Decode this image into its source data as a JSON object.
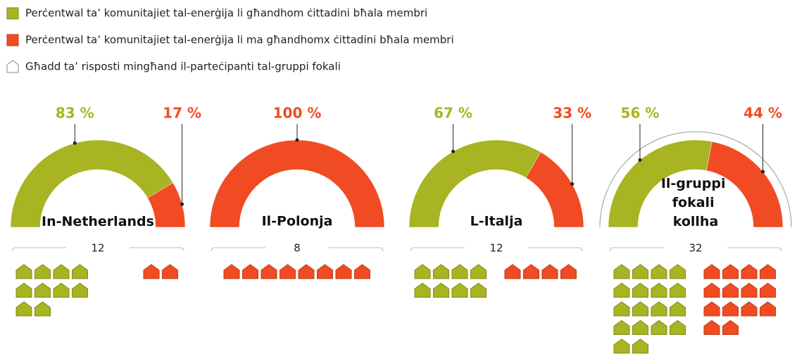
{
  "chart_data": {
    "type": "semi-donut",
    "categories": [
      "In-Netherlands",
      "Il-Polonja",
      "L-Italja",
      "Il-gruppi fokali kollha"
    ],
    "series": [
      {
        "name": "Perċentwal ta’ komunitajiet tal-enerġija li għandhom ċittadini bħala membri",
        "color": "#a8b421",
        "values": [
          83,
          0,
          67,
          56
        ],
        "value_labels": [
          "83 %",
          null,
          "67 %",
          "56 %"
        ],
        "counts": [
          10,
          0,
          8,
          18
        ]
      },
      {
        "name": "Perċentwal ta’ komunitajiet tal-enerġija li ma għandhomx ċittadini bħala membri",
        "color": "#f04b23",
        "values": [
          17,
          100,
          33,
          44
        ],
        "value_labels": [
          "17 %",
          "100 %",
          "33 %",
          "44 %"
        ],
        "counts": [
          2,
          8,
          4,
          14
        ]
      }
    ],
    "size_label": "Għadd ta’ risposti mingħand il-parteċipanti tal-gruppi fokali",
    "totals": [
      12,
      8,
      12,
      32
    ]
  }
}
